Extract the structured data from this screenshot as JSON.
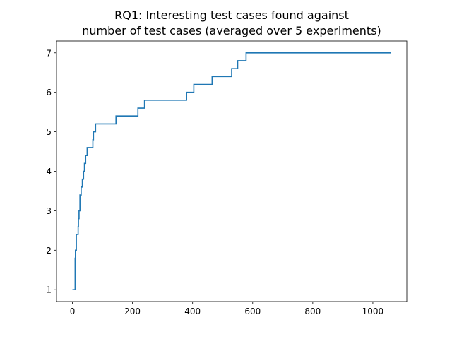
{
  "chart_data": {
    "type": "line",
    "title_lines": [
      "RQ1: Interesting test cases found against",
      "number of test cases (averaged over 5 experiments)"
    ],
    "xlabel": "",
    "ylabel": "",
    "xlim": [
      -53,
      1113
    ],
    "ylim": [
      0.7,
      7.3
    ],
    "xticks": [
      0,
      200,
      400,
      600,
      800,
      1000
    ],
    "yticks": [
      1,
      2,
      3,
      4,
      5,
      6,
      7
    ],
    "grid": false,
    "line_color": "#1f77b4",
    "series": [
      {
        "step": "post",
        "x": [
          0,
          9,
          10,
          13,
          19,
          20,
          22,
          25,
          29,
          33,
          37,
          40,
          44,
          49,
          68,
          70,
          77,
          145,
          218,
          240,
          380,
          404,
          465,
          530,
          550,
          578,
          595,
          705,
          812,
          1060
        ],
        "y": [
          1.0,
          1.8,
          2.0,
          2.4,
          2.6,
          2.8,
          3.0,
          3.4,
          3.6,
          3.8,
          4.0,
          4.2,
          4.4,
          4.6,
          4.8,
          5.0,
          5.2,
          5.4,
          5.6,
          5.8,
          6.0,
          6.2,
          6.4,
          6.6,
          6.8,
          7.0,
          7.0,
          7.0,
          7.0,
          7.0
        ]
      }
    ]
  }
}
